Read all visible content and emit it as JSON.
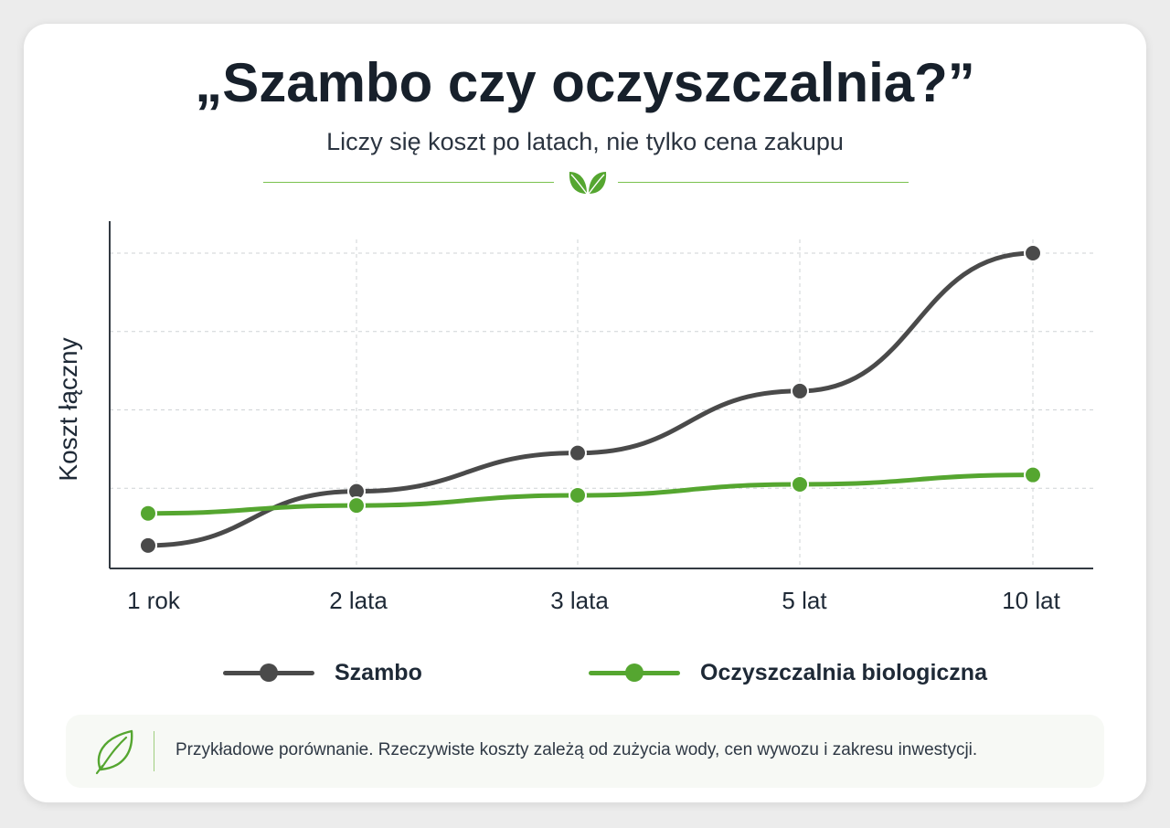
{
  "header": {
    "title": "„Szambo czy oczyszczalnia?”",
    "subtitle": "Liczy się koszt po latach, nie tylko cena zakupu"
  },
  "colors": {
    "szambo": "#4a4a4a",
    "oczyszczalnia": "#55a630",
    "accent": "#7ac24f"
  },
  "icons": {
    "divider": "leaf-icon",
    "note": "leaf-outline-icon"
  },
  "chart_data": {
    "type": "line",
    "title": "„Szambo czy oczyszczalnia?”",
    "subtitle": "Liczy się koszt po latach, nie tylko cena zakupu",
    "xlabel": "",
    "ylabel": "Koszt łączny",
    "categories": [
      "1 rok",
      "2 lata",
      "3 lata",
      "5 lat",
      "10 lat"
    ],
    "ylim": [
      0,
      4
    ],
    "y_ticks_labeled": false,
    "grid": true,
    "legend_position": "bottom",
    "series": [
      {
        "name": "Szambo",
        "values": [
          0.27,
          0.96,
          1.45,
          2.24,
          4.0
        ]
      },
      {
        "name": "Oczyszczalnia biologiczna",
        "values": [
          0.68,
          0.78,
          0.91,
          1.05,
          1.17
        ]
      }
    ]
  },
  "legend": [
    {
      "label": "Szambo"
    },
    {
      "label": "Oczyszczalnia biologiczna"
    }
  ],
  "note": {
    "text": "Przykładowe porównanie. Rzeczywiste koszty zależą od zużycia wody, cen wywozu i zakresu inwestycji."
  }
}
